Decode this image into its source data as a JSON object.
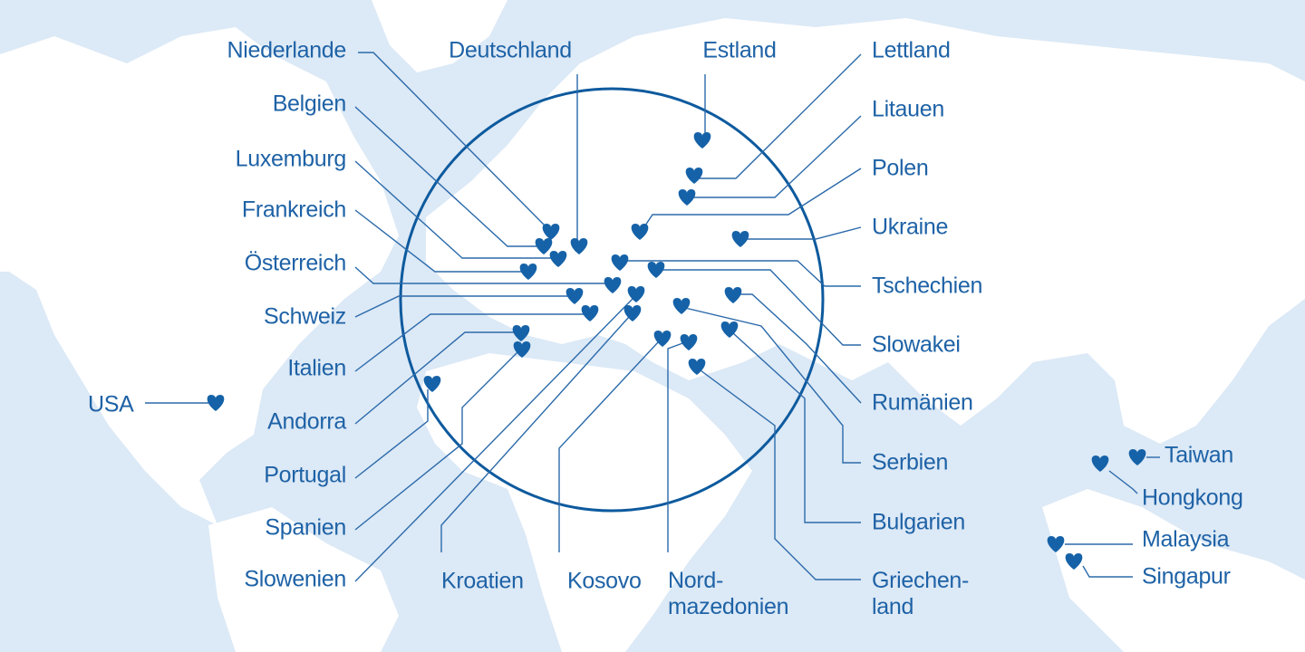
{
  "labels": [
    "Niederlande",
    "Belgien",
    "Luxemburg",
    "Frankreich",
    "Österreich",
    "Schweiz",
    "Italien",
    "Andorra",
    "Portugal",
    "Spanien",
    "Slowenien",
    "Kroatien",
    "Kosovo",
    "Nord-\nmazedonien",
    "Griechen-\nland",
    "Bulgarien",
    "Serbien",
    "Rumänien",
    "Slowakei",
    "Tschechien",
    "Ukraine",
    "Polen",
    "Litauen",
    "Lettland",
    "Estland",
    "Deutschland",
    "USA",
    "Taiwan",
    "Hongkong",
    "Malaysia",
    "Singapur"
  ]
}
